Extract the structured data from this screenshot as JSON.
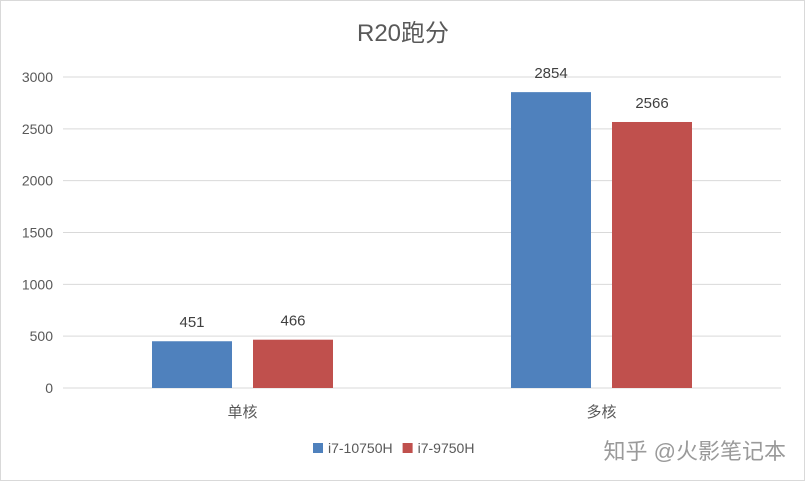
{
  "chart_data": {
    "type": "bar",
    "title": "R20跑分",
    "categories": [
      "单核",
      "多核"
    ],
    "series": [
      {
        "name": "i7-10750H",
        "values": [
          451,
          2854
        ],
        "color": "#4F81BD"
      },
      {
        "name": "i7-9750H",
        "values": [
          466,
          2566
        ],
        "color": "#C0504D"
      }
    ],
    "ylim": [
      0,
      3000
    ],
    "yticks": [
      0,
      500,
      1000,
      1500,
      2000,
      2500,
      3000
    ],
    "grid": true,
    "legend": "bottom",
    "data_labels": true
  },
  "watermark": "知乎 @火影笔记本",
  "colors": {
    "grid": "#d9d9d9",
    "text": "#595959"
  }
}
